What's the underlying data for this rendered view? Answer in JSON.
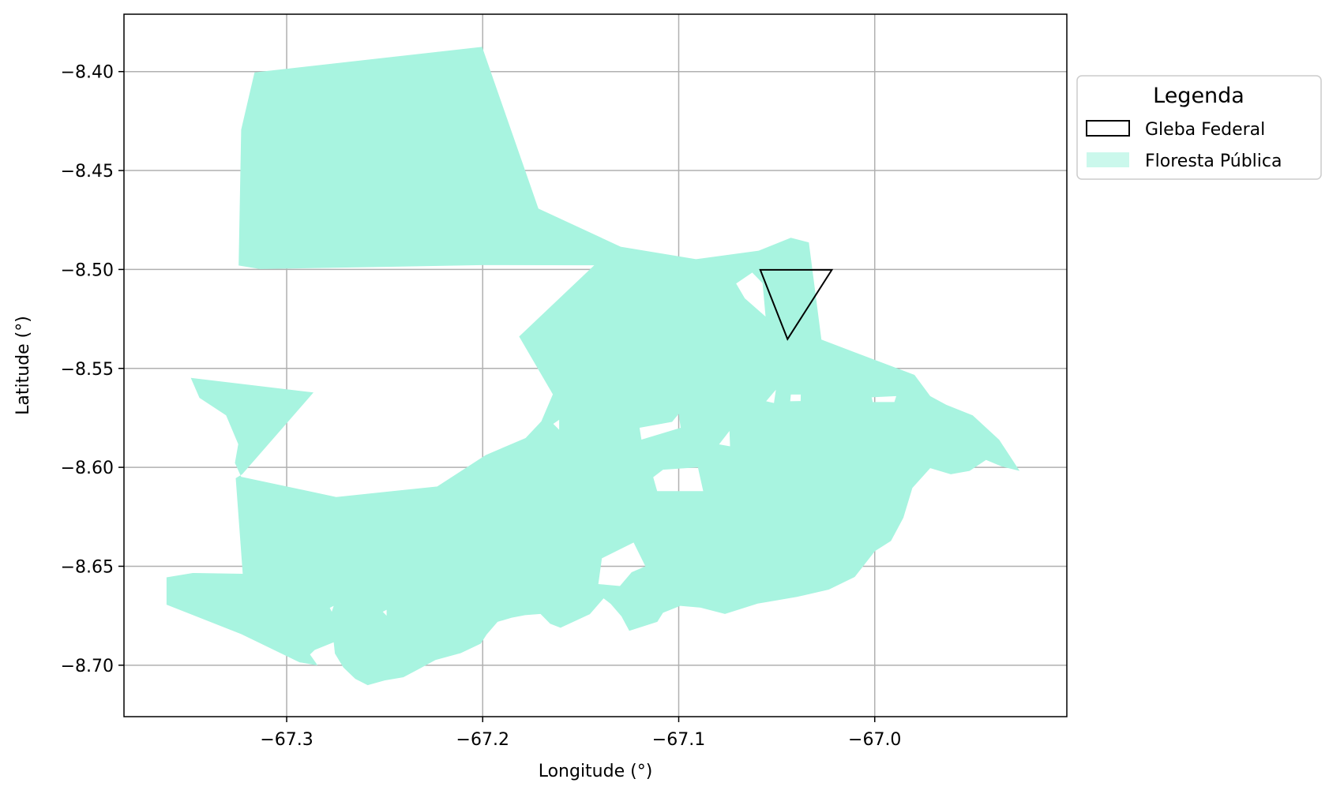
{
  "chart_data": {
    "type": "map",
    "xlabel": "Longitude (°)",
    "ylabel": "Latitude (°)",
    "xlim": [
      -67.383,
      -66.902
    ],
    "ylim": [
      -8.726,
      -8.371
    ],
    "grid": true,
    "x_ticks": [
      {
        "value": -67.3,
        "label": "−67.3"
      },
      {
        "value": -67.2,
        "label": "−67.2"
      },
      {
        "value": -67.1,
        "label": "−67.1"
      },
      {
        "value": -67.0,
        "label": "−67.0"
      }
    ],
    "y_ticks": [
      {
        "value": -8.4,
        "label": "−8.40"
      },
      {
        "value": -8.45,
        "label": "−8.45"
      },
      {
        "value": -8.5,
        "label": "−8.50"
      },
      {
        "value": -8.55,
        "label": "−8.55"
      },
      {
        "value": -8.6,
        "label": "−8.60"
      },
      {
        "value": -8.65,
        "label": "−8.65"
      },
      {
        "value": -8.7,
        "label": "−8.70"
      }
    ],
    "legend": {
      "title": "Legenda",
      "placement": "outside-upper-right",
      "entries": [
        {
          "label": "Gleba Federal",
          "style": "outline",
          "color": "#000000"
        },
        {
          "label": "Floresta Pública",
          "style": "fill",
          "color": "#a8f4e0"
        }
      ]
    },
    "layers": [
      {
        "name": "Floresta Pública",
        "color": "#a8f4e0",
        "polygons": [
          {
            "outer": [
              [
                -67.3164,
                -8.4004
              ],
              [
                -67.2003,
                -8.3875
              ],
              [
                -67.1716,
                -8.4692
              ],
              [
                -67.1296,
                -8.4885
              ],
              [
                -67.0912,
                -8.4948
              ],
              [
                -67.0592,
                -8.4905
              ],
              [
                -67.0428,
                -8.484
              ],
              [
                -67.0336,
                -8.4863
              ],
              [
                -67.0272,
                -8.5354
              ],
              [
                -67.0095,
                -8.5421
              ],
              [
                -66.9797,
                -8.5533
              ],
              [
                -66.9717,
                -8.564
              ],
              [
                -66.9635,
                -8.5684
              ],
              [
                -66.95,
                -8.5737
              ],
              [
                -66.9365,
                -8.5861
              ],
              [
                -66.9261,
                -8.6018
              ],
              [
                -66.9351,
                -8.5996
              ],
              [
                -66.9432,
                -8.5963
              ],
              [
                -66.9516,
                -8.6018
              ],
              [
                -66.9612,
                -8.6035
              ],
              [
                -66.9717,
                -8.6004
              ],
              [
                -66.9808,
                -8.6104
              ],
              [
                -66.9854,
                -8.6255
              ],
              [
                -66.9917,
                -8.6372
              ],
              [
                -66.9999,
                -8.6423
              ],
              [
                -67.0102,
                -8.6554
              ],
              [
                -67.0234,
                -8.6618
              ],
              [
                -67.0397,
                -8.6655
              ],
              [
                -67.0597,
                -8.6689
              ],
              [
                -67.0764,
                -8.6741
              ],
              [
                -67.0888,
                -8.6709
              ],
              [
                -67.0992,
                -8.67
              ],
              [
                -67.108,
                -8.6735
              ],
              [
                -67.1109,
                -8.6781
              ],
              [
                -67.1252,
                -8.6826
              ],
              [
                -67.1292,
                -8.6753
              ],
              [
                -67.1347,
                -8.669
              ],
              [
                -67.1383,
                -8.6662
              ],
              [
                -67.1453,
                -8.6742
              ],
              [
                -67.1603,
                -8.6811
              ],
              [
                -67.1656,
                -8.679
              ],
              [
                -67.1705,
                -8.6741
              ],
              [
                -67.1783,
                -8.6747
              ],
              [
                -67.1852,
                -8.676
              ],
              [
                -67.1924,
                -8.6781
              ],
              [
                -67.198,
                -8.6845
              ],
              [
                -67.201,
                -8.6891
              ],
              [
                -67.2112,
                -8.6939
              ],
              [
                -67.2241,
                -8.6974
              ],
              [
                -67.2326,
                -8.702
              ],
              [
                -67.2405,
                -8.7061
              ],
              [
                -67.25,
                -8.7077
              ],
              [
                -67.2587,
                -8.7101
              ],
              [
                -67.265,
                -8.7069
              ],
              [
                -67.2711,
                -8.7011
              ],
              [
                -67.2754,
                -8.6941
              ],
              [
                -67.276,
                -8.6884
              ],
              [
                -67.2857,
                -8.6923
              ],
              [
                -67.2881,
                -8.6946
              ],
              [
                -67.2842,
                -8.7001
              ],
              [
                -67.2935,
                -8.6985
              ],
              [
                -67.3231,
                -8.6843
              ],
              [
                -67.3613,
                -8.6694
              ],
              [
                -67.3613,
                -8.6556
              ],
              [
                -67.3479,
                -8.6534
              ],
              [
                -67.3224,
                -8.6538
              ],
              [
                -67.326,
                -8.6055
              ],
              [
                -67.3227,
                -8.6035
              ],
              [
                -67.2863,
                -8.5622
              ],
              [
                -67.3489,
                -8.5548
              ],
              [
                -67.3445,
                -8.5649
              ],
              [
                -67.3309,
                -8.5737
              ],
              [
                -67.3247,
                -8.5883
              ],
              [
                -67.3264,
                -8.5978
              ],
              [
                -67.3232,
                -8.6048
              ],
              [
                -67.2747,
                -8.615
              ],
              [
                -67.2232,
                -8.6097
              ],
              [
                -67.1985,
                -8.5938
              ],
              [
                -67.1781,
                -8.5852
              ],
              [
                -67.1701,
                -8.5768
              ],
              [
                -67.1642,
                -8.5631
              ],
              [
                -67.1814,
                -8.5339
              ],
              [
                -67.1431,
                -8.4979
              ],
              [
                -67.2003,
                -8.4978
              ],
              [
                -67.3136,
                -8.4998
              ],
              [
                -67.3245,
                -8.498
              ],
              [
                -67.3232,
                -8.4294
              ]
            ],
            "holes": [
              [
                [
                  -67.1034,
                  -8.577
                ],
                [
                  -67.1,
                  -8.573
                ],
                [
                  -67.099,
                  -8.58
                ],
                [
                  -67.119,
                  -8.586
                ],
                [
                  -67.12,
                  -8.58
                ]
              ],
              [
                [
                  -67.108,
                  -8.6012
                ],
                [
                  -67.0902,
                  -8.6
                ],
                [
                  -67.0875,
                  -8.612
                ],
                [
                  -67.111,
                  -8.612
                ],
                [
                  -67.113,
                  -8.605
                ]
              ],
              [
                [
                  -67.0794,
                  -8.5884
                ],
                [
                  -67.0741,
                  -8.5816
                ],
                [
                  -67.0738,
                  -8.5894
                ]
              ],
              [
                [
                  -67.0428,
                  -8.5632
                ],
                [
                  -67.0377,
                  -8.5632
                ],
                [
                  -67.0378,
                  -8.5665
                ],
                [
                  -67.0431,
                  -8.5666
                ]
              ],
              [
                [
                  -67.0016,
                  -8.5646
                ],
                [
                  -66.989,
                  -8.564
                ],
                [
                  -66.99,
                  -8.567
                ],
                [
                  -67.001,
                  -8.567
                ]
              ],
              [
                [
                  -67.0554,
                  -8.5666
                ],
                [
                  -67.0504,
                  -8.5608
                ],
                [
                  -67.0514,
                  -8.5675
                ]
              ],
              [
                [
                  -67.0707,
                  -8.5071
                ],
                [
                  -67.0625,
                  -8.5016
                ],
                [
                  -67.0572,
                  -8.5069
                ],
                [
                  -67.0557,
                  -8.5238
                ],
                [
                  -67.0663,
                  -8.5146
                ]
              ],
              [
                [
                  -67.1392,
                  -8.646
                ],
                [
                  -67.123,
                  -8.638
                ],
                [
                  -67.117,
                  -8.65
                ],
                [
                  -67.124,
                  -8.653
                ],
                [
                  -67.13,
                  -8.66
                ],
                [
                  -67.141,
                  -8.659
                ]
              ],
              [
                [
                  -67.251,
                  -8.673
                ],
                [
                  -67.249,
                  -8.672
                ],
                [
                  -67.249,
                  -8.675
                ]
              ],
              [
                [
                  -67.164,
                  -8.578
                ],
                [
                  -67.161,
                  -8.576
                ],
                [
                  -67.161,
                  -8.581
                ]
              ],
              [
                [
                  -67.278,
                  -8.671
                ],
                [
                  -67.276,
                  -8.67
                ],
                [
                  -67.277,
                  -8.673
                ]
              ]
            ]
          }
        ]
      },
      {
        "name": "Gleba Federal",
        "color": "#000000",
        "polygons": [
          {
            "outer": [
              [
                -67.0584,
                -8.5002
              ],
              [
                -67.0445,
                -8.5352
              ],
              [
                -67.0219,
                -8.5002
              ]
            ],
            "holes": []
          }
        ]
      }
    ]
  }
}
